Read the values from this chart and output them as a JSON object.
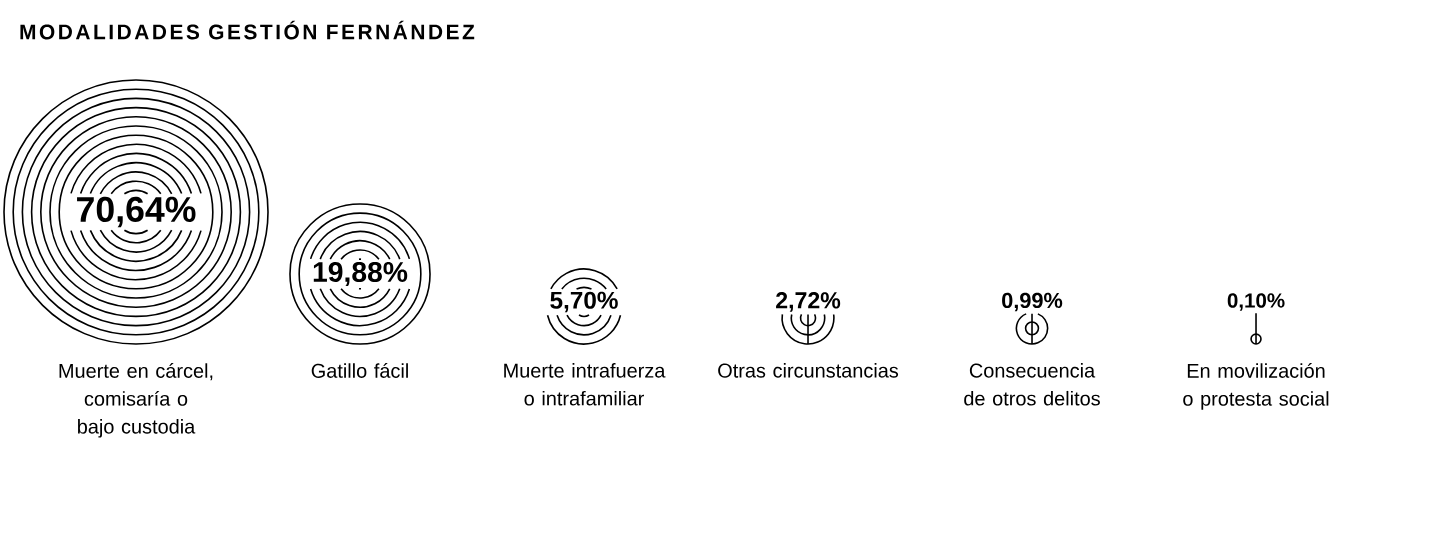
{
  "chart_data": {
    "type": "other",
    "title": "MODALIDADES GESTIÓN FERNÁNDEZ",
    "categories": [
      "Muerte en cárcel, comisaría o bajo custodia",
      "Gatillo fácil",
      "Muerte intrafuerza o intrafamiliar",
      "Otras circunstancias",
      "Consecuencia de otros delitos",
      "En movilización o protesta social"
    ],
    "values": [
      70.64,
      19.88,
      5.7,
      2.72,
      0.99,
      0.1
    ],
    "value_labels": [
      "70,64%",
      "19,88%",
      "5,70%",
      "2,72%",
      "0,99%",
      "0,10%"
    ],
    "color": "#000000"
  }
}
